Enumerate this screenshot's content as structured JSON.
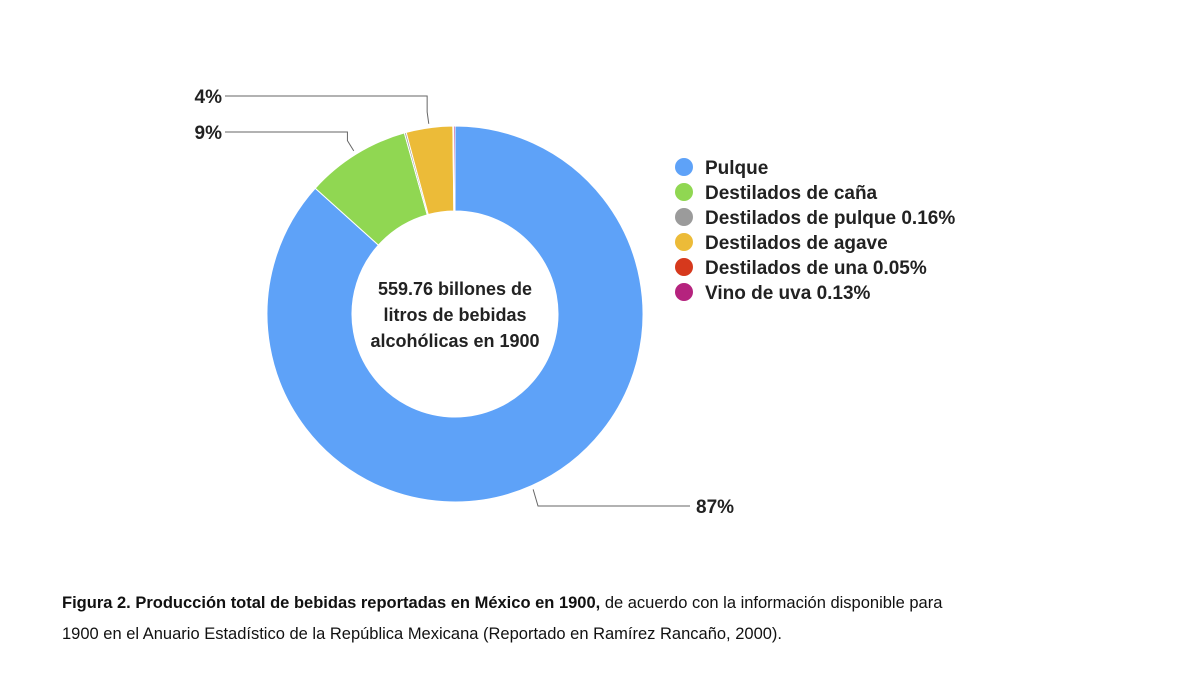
{
  "chart_data": {
    "type": "pie",
    "variant": "donut",
    "categories": [
      "Pulque",
      "Destilados de caña",
      "Destilados de pulque 0.16%",
      "Destilados de agave",
      "Destilados de una 0.05%",
      "Vino de uva 0.13%"
    ],
    "values": [
      86.66,
      9.0,
      0.16,
      4.0,
      0.05,
      0.13
    ],
    "colors": [
      "#5ea2f8",
      "#90d752",
      "#9b9b9b",
      "#ecbb38",
      "#d6391d",
      "#b5237e"
    ],
    "slice_labels": [
      {
        "index": 0,
        "text": "87%"
      },
      {
        "index": 1,
        "text": "9%"
      },
      {
        "index": 3,
        "text": "4%"
      }
    ],
    "center_text": [
      "559.76 billones de",
      "litros de bebidas",
      "alcohólicas en 1900"
    ],
    "legend_position": "right"
  },
  "caption": {
    "bold": "Figura 2. Producción total de bebidas reportadas en México en 1900,",
    "rest_line1": " de acuerdo con la información disponible para",
    "line2": "1900 en el Anuario Estadístico de la República Mexicana (Reportado en Ramírez Rancaño, 2000)."
  }
}
